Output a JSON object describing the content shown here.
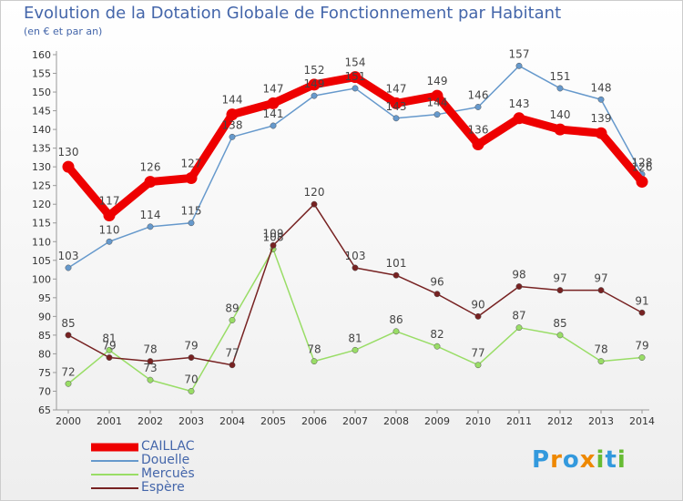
{
  "header": {
    "title": "Evolution de la Dotation Globale de Fonctionnement par Habitant",
    "subtitle": "(en € et par an)"
  },
  "logo": {
    "text": "Proxiti"
  },
  "chart_data": {
    "type": "line",
    "title": "Evolution de la Dotation Globale de Fonctionnement par Habitant",
    "subtitle": "(en € et par an)",
    "xlabel": "",
    "ylabel": "",
    "ylim": [
      65,
      160
    ],
    "y_ticks": [
      65,
      70,
      75,
      80,
      85,
      90,
      95,
      100,
      105,
      110,
      115,
      120,
      125,
      130,
      135,
      140,
      145,
      150,
      155,
      160
    ],
    "grid": false,
    "legend_position": "bottom-left",
    "x": [
      "2000",
      "2001",
      "2002",
      "2003",
      "2004",
      "2005",
      "2006",
      "2007",
      "2008",
      "2009",
      "2010",
      "2011",
      "2012",
      "2013",
      "2014"
    ],
    "series": [
      {
        "name": "CAILLAC",
        "color": "#ee0000",
        "values": [
          130,
          117,
          126,
          127,
          144,
          147,
          152,
          154,
          147,
          149,
          136,
          143,
          140,
          139,
          126
        ]
      },
      {
        "name": "Douelle",
        "color": "#6699cc",
        "values": [
          103,
          110,
          114,
          115,
          138,
          141,
          149,
          151,
          143,
          144,
          146,
          157,
          151,
          148,
          128
        ]
      },
      {
        "name": "Mercuès",
        "color": "#99dd66",
        "values": [
          72,
          81,
          73,
          70,
          89,
          108,
          78,
          81,
          86,
          82,
          77,
          87,
          85,
          78,
          79
        ]
      },
      {
        "name": "Espère",
        "color": "#772222",
        "values": [
          85,
          79,
          78,
          79,
          77,
          109,
          120,
          103,
          101,
          96,
          90,
          98,
          97,
          97,
          91
        ]
      }
    ]
  }
}
